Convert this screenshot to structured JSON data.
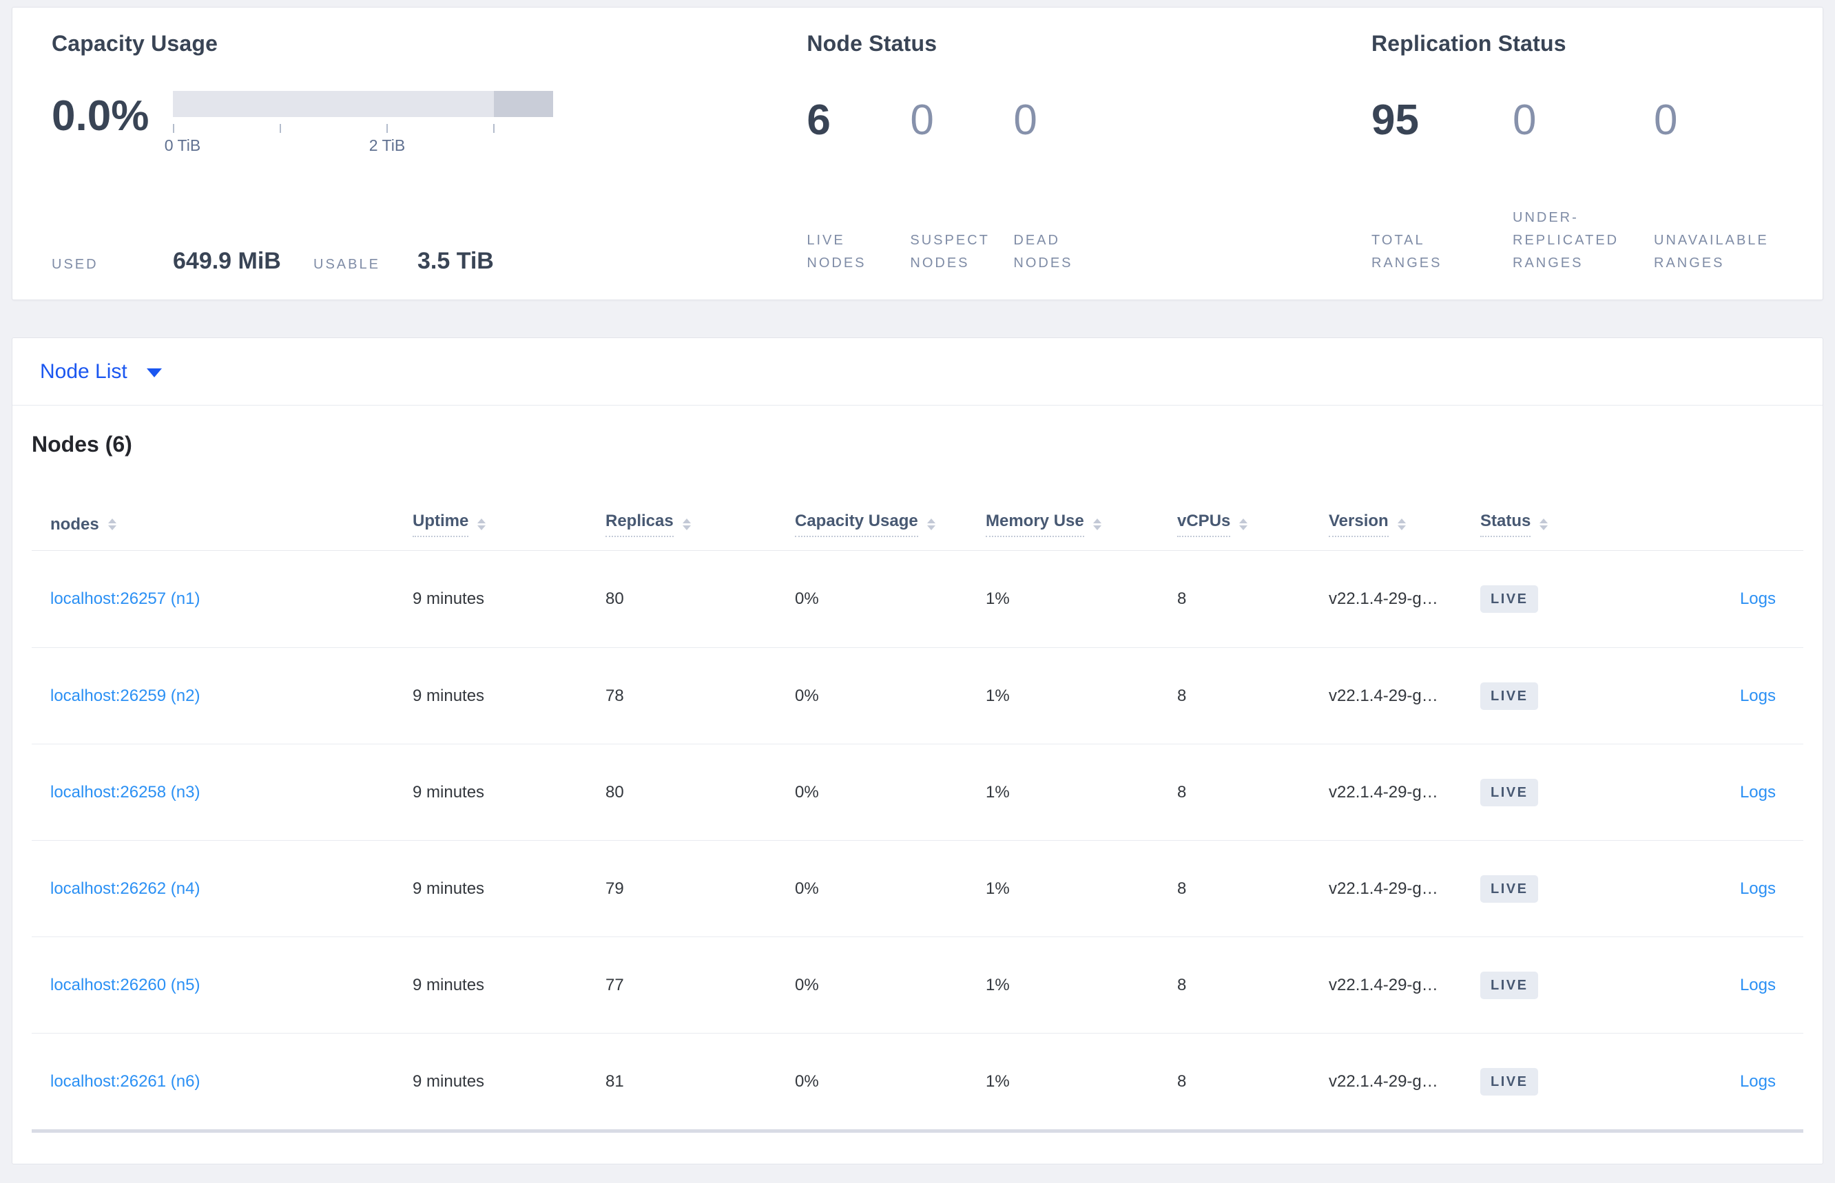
{
  "summary_panel": {
    "capacity_usage": {
      "title": "Capacity Usage",
      "percent_used": "0.0%",
      "bar": {
        "tick_labels": [
          "0 TiB",
          "2 TiB"
        ],
        "tick_count": 4,
        "light_color": "#e3e5ec",
        "dark_color": "#c9cdd8"
      },
      "used_label": "USED",
      "used_value": "649.9 MiB",
      "usable_label": "USABLE",
      "usable_value": "3.5 TiB"
    },
    "node_status": {
      "title": "Node Status",
      "stats": [
        {
          "value": "6",
          "label": "LIVE NODES",
          "muted": false
        },
        {
          "value": "0",
          "label": "SUSPECT NODES",
          "muted": true
        },
        {
          "value": "0",
          "label": "DEAD NODES",
          "muted": true
        }
      ]
    },
    "replication_status": {
      "title": "Replication Status",
      "stats": [
        {
          "value": "95",
          "label": "TOTAL RANGES",
          "muted": false
        },
        {
          "value": "0",
          "label": "UNDER-REPLICATED RANGES",
          "muted": true
        },
        {
          "value": "0",
          "label": "UNAVAILABLE RANGES",
          "muted": true
        }
      ]
    }
  },
  "view_dropdown": {
    "label": "Node List"
  },
  "nodes_table": {
    "title": "Nodes (6)",
    "columns": [
      {
        "label": "nodes",
        "sortable": true,
        "dotted": false
      },
      {
        "label": "Uptime",
        "sortable": true,
        "dotted": true
      },
      {
        "label": "Replicas",
        "sortable": true,
        "dotted": true
      },
      {
        "label": "Capacity Usage",
        "sortable": true,
        "dotted": true
      },
      {
        "label": "Memory Use",
        "sortable": true,
        "dotted": true
      },
      {
        "label": "vCPUs",
        "sortable": true,
        "dotted": true
      },
      {
        "label": "Version",
        "sortable": true,
        "dotted": true
      },
      {
        "label": "Status",
        "sortable": true,
        "dotted": true
      },
      {
        "label": "",
        "sortable": false,
        "dotted": false
      }
    ],
    "rows": [
      {
        "node": "localhost:26257 (n1)",
        "uptime": "9 minutes",
        "replicas": "80",
        "capacity_usage": "0%",
        "memory_use": "1%",
        "vcpus": "8",
        "version": "v22.1.4-29-g…",
        "status": "LIVE",
        "logs_label": "Logs"
      },
      {
        "node": "localhost:26259 (n2)",
        "uptime": "9 minutes",
        "replicas": "78",
        "capacity_usage": "0%",
        "memory_use": "1%",
        "vcpus": "8",
        "version": "v22.1.4-29-g…",
        "status": "LIVE",
        "logs_label": "Logs"
      },
      {
        "node": "localhost:26258 (n3)",
        "uptime": "9 minutes",
        "replicas": "80",
        "capacity_usage": "0%",
        "memory_use": "1%",
        "vcpus": "8",
        "version": "v22.1.4-29-g…",
        "status": "LIVE",
        "logs_label": "Logs"
      },
      {
        "node": "localhost:26262 (n4)",
        "uptime": "9 minutes",
        "replicas": "79",
        "capacity_usage": "0%",
        "memory_use": "1%",
        "vcpus": "8",
        "version": "v22.1.4-29-g…",
        "status": "LIVE",
        "logs_label": "Logs"
      },
      {
        "node": "localhost:26260 (n5)",
        "uptime": "9 minutes",
        "replicas": "77",
        "capacity_usage": "0%",
        "memory_use": "1%",
        "vcpus": "8",
        "version": "v22.1.4-29-g…",
        "status": "LIVE",
        "logs_label": "Logs"
      },
      {
        "node": "localhost:26261 (n6)",
        "uptime": "9 minutes",
        "replicas": "81",
        "capacity_usage": "0%",
        "memory_use": "1%",
        "vcpus": "8",
        "version": "v22.1.4-29-g…",
        "status": "LIVE",
        "logs_label": "Logs"
      }
    ]
  },
  "colors": {
    "link_blue": "#2b90f4",
    "dropdown_blue": "#1a56f0",
    "heading_slate": "#394455",
    "muted_stat": "#8691ab",
    "label_gray_blue": "#7f8ca6",
    "badge_bg": "#e7ebf2",
    "badge_text": "#475872",
    "page_bg": "#f0f1f5"
  }
}
